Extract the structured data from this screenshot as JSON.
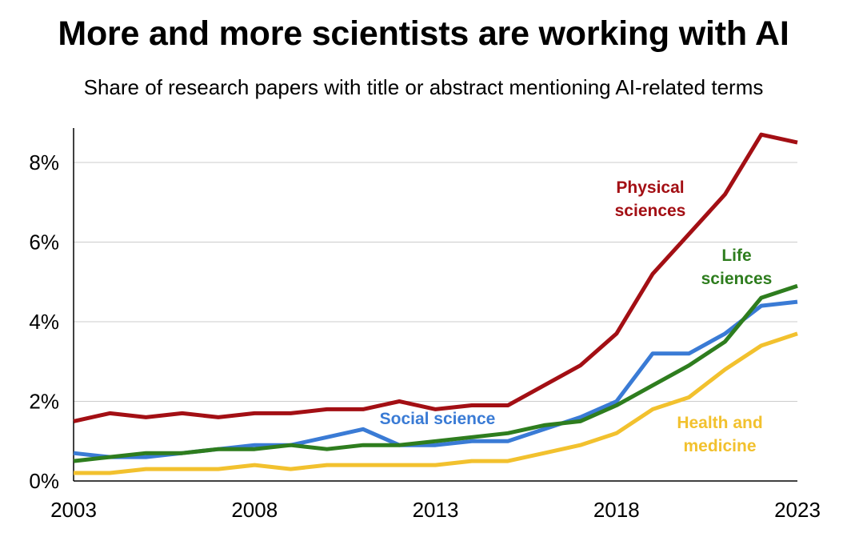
{
  "title": "More and more scientists are working with AI",
  "subtitle": "Share of research papers with title or abstract mentioning AI-related terms",
  "colors": {
    "physical": "#a30f14",
    "life": "#2e7d1e",
    "social": "#3a7bd5",
    "health": "#f2c12e",
    "grid": "#cccccc",
    "axis": "#000000"
  },
  "chart_data": {
    "type": "line",
    "title": "More and more scientists are working with AI",
    "subtitle": "Share of research papers with title or abstract mentioning AI-related terms",
    "xlabel": "",
    "ylabel": "",
    "xlim": [
      2003,
      2023
    ],
    "ylim": [
      0,
      9
    ],
    "x_ticks": [
      "2003",
      "2008",
      "2013",
      "2018",
      "2023"
    ],
    "y_ticks": [
      "0%",
      "2%",
      "4%",
      "6%",
      "8%"
    ],
    "grid": "horizontal",
    "x": [
      2003,
      2004,
      2005,
      2006,
      2007,
      2008,
      2009,
      2010,
      2011,
      2012,
      2013,
      2014,
      2015,
      2016,
      2017,
      2018,
      2019,
      2020,
      2021,
      2022,
      2023
    ],
    "series": [
      {
        "name": "Physical sciences",
        "label_lines": [
          "Physical",
          "sciences"
        ],
        "color": "#a30f14",
        "values": [
          1.5,
          1.7,
          1.6,
          1.7,
          1.6,
          1.7,
          1.7,
          1.8,
          1.8,
          2.0,
          1.8,
          1.9,
          1.9,
          2.4,
          2.9,
          3.7,
          5.2,
          6.2,
          7.2,
          8.7,
          8.5
        ]
      },
      {
        "name": "Life sciences",
        "label_lines": [
          "Life",
          "sciences"
        ],
        "color": "#2e7d1e",
        "values": [
          0.5,
          0.6,
          0.7,
          0.7,
          0.8,
          0.8,
          0.9,
          0.8,
          0.9,
          0.9,
          1.0,
          1.1,
          1.2,
          1.4,
          1.5,
          1.9,
          2.4,
          2.9,
          3.5,
          4.6,
          4.9
        ]
      },
      {
        "name": "Social science",
        "label_lines": [
          "Social science"
        ],
        "color": "#3a7bd5",
        "values": [
          0.7,
          0.6,
          0.6,
          0.7,
          0.8,
          0.9,
          0.9,
          1.1,
          1.3,
          0.9,
          0.9,
          1.0,
          1.0,
          1.3,
          1.6,
          2.0,
          3.2,
          3.2,
          3.7,
          4.4,
          4.5
        ]
      },
      {
        "name": "Health and medicine",
        "label_lines": [
          "Health and",
          "medicine"
        ],
        "color": "#f2c12e",
        "values": [
          0.2,
          0.2,
          0.3,
          0.3,
          0.3,
          0.4,
          0.3,
          0.4,
          0.4,
          0.4,
          0.4,
          0.5,
          0.5,
          0.7,
          0.9,
          1.2,
          1.8,
          2.1,
          2.8,
          3.4,
          3.7
        ]
      }
    ]
  }
}
